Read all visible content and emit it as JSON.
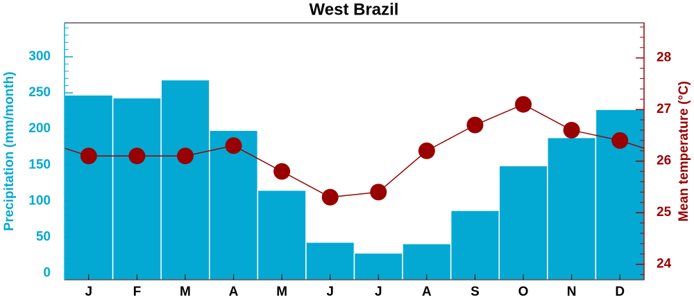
{
  "chart_data": {
    "type": "bar_line",
    "title": "West Brazil",
    "categories": [
      "J",
      "F",
      "M",
      "A",
      "M",
      "J",
      "J",
      "A",
      "S",
      "O",
      "N",
      "D"
    ],
    "ylabel": "Precipitation (mm/month)",
    "y2label": "Mean temperature (°C)",
    "series": [
      {
        "type": "bar",
        "color": "#03a9d3",
        "values": [
          247,
          243,
          268,
          198,
          115,
          43,
          28,
          41,
          87,
          149,
          188,
          227
        ]
      },
      {
        "type": "line",
        "axis": "y2",
        "color": "#990000",
        "values": [
          26.1,
          26.1,
          26.1,
          26.3,
          25.8,
          25.3,
          25.4,
          26.2,
          26.7,
          27.1,
          26.6,
          26.4
        ]
      }
    ],
    "ylim": [
      -9,
      347
    ],
    "yticks": [
      0,
      50,
      100,
      150,
      200,
      250,
      300
    ],
    "ycolor": "#03a9d3",
    "y2lim": [
      23.7,
      28.68
    ],
    "y2ticks": [
      24,
      25,
      26,
      27,
      28
    ],
    "y2color": "#990000"
  }
}
